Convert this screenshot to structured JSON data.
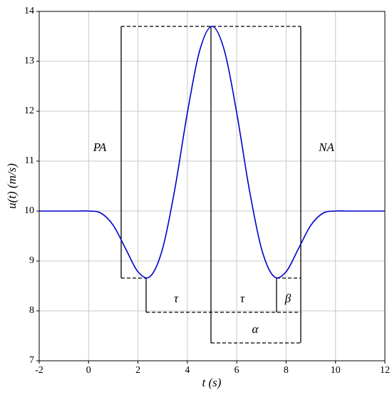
{
  "chart_data": {
    "type": "line",
    "x_label": "t (s)",
    "y_label": "u(t) (m/s)",
    "x": [
      -2,
      -1.5,
      -1,
      -0.5,
      0,
      0.5,
      1,
      1.5,
      2,
      2.5,
      3,
      3.5,
      4,
      4.5,
      5,
      5.5,
      6,
      6.5,
      7,
      7.5,
      8,
      8.5,
      9,
      9.5,
      10,
      10.5,
      11,
      11.5,
      12
    ],
    "series": [
      {
        "name": "u(t)",
        "color": "#0000cc",
        "values": [
          10,
          10,
          10,
          10,
          10,
          9.959,
          9.714,
          9.247,
          8.784,
          8.692,
          9.252,
          10.459,
          11.967,
          13.216,
          13.7,
          13.216,
          11.967,
          10.459,
          9.252,
          8.692,
          8.784,
          9.247,
          9.714,
          9.959,
          10,
          10,
          10,
          10,
          10
        ]
      }
    ],
    "xlim": [
      -2,
      12
    ],
    "xticks": [
      -2,
      0,
      2,
      4,
      6,
      8,
      10,
      12
    ],
    "ylim": [
      7,
      14
    ],
    "yticks": [
      7,
      8,
      9,
      10,
      11,
      12,
      13,
      14
    ],
    "grid": true,
    "annotations": [
      "PA",
      "NA",
      "τ",
      "τ",
      "β",
      "α"
    ]
  }
}
